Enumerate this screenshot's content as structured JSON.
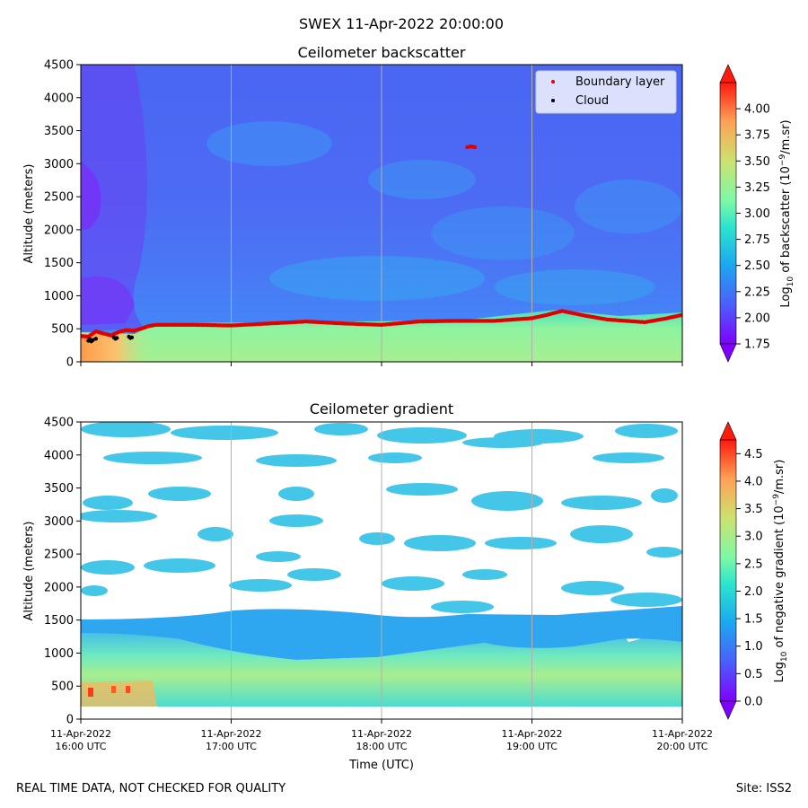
{
  "figure": {
    "suptitle": "SWEX 11-Apr-2022 20:00:00",
    "footer_left": "REAL TIME DATA, NOT CHECKED FOR QUALITY",
    "footer_right": "Site: ISS2"
  },
  "chart_data": [
    {
      "type": "heatmap",
      "title": "Ceilometer backscatter",
      "xlabel": "",
      "ylabel": "Altitude (meters)",
      "ylim": [
        0,
        4500
      ],
      "yticks": [
        0,
        500,
        1000,
        1500,
        2000,
        2500,
        3000,
        3500,
        4000,
        4500
      ],
      "xlim_hours_utc": [
        16,
        20
      ],
      "vertical_gridlines_hours_utc": [
        17,
        18,
        19
      ],
      "colormap": "rainbow",
      "colorbar": {
        "label": "Log10 of backscatter (10^-9/m.sr)",
        "range": [
          1.75,
          4.25
        ],
        "ticks": [
          "1.75",
          "2.00",
          "2.25",
          "2.50",
          "2.75",
          "3.00",
          "3.25",
          "3.50",
          "3.75",
          "4.00"
        ],
        "extend": "both"
      },
      "legend": {
        "position": "top-right",
        "entries": [
          {
            "label": "Boundary layer",
            "color": "#e00000"
          },
          {
            "label": "Cloud",
            "color": "#000000"
          }
        ]
      },
      "series": [
        {
          "name": "Boundary layer",
          "x_hours": [
            16.0,
            16.05,
            16.1,
            16.15,
            16.2,
            16.25,
            16.3,
            16.35,
            16.4,
            16.45,
            16.5,
            16.75,
            17.0,
            17.25,
            17.5,
            17.75,
            18.0,
            18.25,
            18.5,
            18.75,
            19.0,
            19.1,
            19.2,
            19.35,
            19.5,
            19.75,
            19.9,
            20.0
          ],
          "y_m": [
            390,
            380,
            460,
            430,
            400,
            450,
            480,
            470,
            500,
            540,
            560,
            560,
            550,
            580,
            610,
            580,
            560,
            610,
            620,
            620,
            660,
            710,
            770,
            700,
            640,
            600,
            660,
            710
          ]
        },
        {
          "name": "Boundary layer (isolated)",
          "x_hours": [
            18.57,
            18.58,
            18.59,
            18.6,
            18.61,
            18.62
          ],
          "y_m": [
            3250,
            3255,
            3260,
            3260,
            3255,
            3250
          ]
        },
        {
          "name": "Cloud",
          "x_hours": [
            16.05,
            16.06,
            16.07,
            16.08,
            16.1,
            16.22,
            16.23,
            16.24,
            16.32,
            16.33,
            16.34
          ],
          "y_m": [
            320,
            340,
            310,
            330,
            350,
            370,
            350,
            360,
            380,
            360,
            370
          ]
        }
      ]
    },
    {
      "type": "heatmap",
      "title": "Ceilometer gradient",
      "xlabel": "Time (UTC)",
      "ylabel": "Altitude (meters)",
      "ylim": [
        0,
        4500
      ],
      "yticks": [
        0,
        500,
        1000,
        1500,
        2000,
        2500,
        3000,
        3500,
        4000,
        4500
      ],
      "xlim_hours_utc": [
        16,
        20
      ],
      "vertical_gridlines_hours_utc": [
        17,
        18,
        19
      ],
      "xtick_labels": [
        [
          "11-Apr-2022",
          "16:00 UTC"
        ],
        [
          "11-Apr-2022",
          "17:00 UTC"
        ],
        [
          "11-Apr-2022",
          "18:00 UTC"
        ],
        [
          "11-Apr-2022",
          "19:00 UTC"
        ],
        [
          "11-Apr-2022",
          "20:00 UTC"
        ]
      ],
      "colormap": "rainbow",
      "colorbar": {
        "label": "Log10 of negative gradient (10^-9/m.sr)",
        "range": [
          0.0,
          4.75
        ],
        "ticks": [
          "0.0",
          "0.5",
          "1.0",
          "1.5",
          "2.0",
          "2.5",
          "3.0",
          "3.5",
          "4.0",
          "4.5"
        ],
        "extend": "both"
      },
      "blank_background": "white"
    }
  ]
}
